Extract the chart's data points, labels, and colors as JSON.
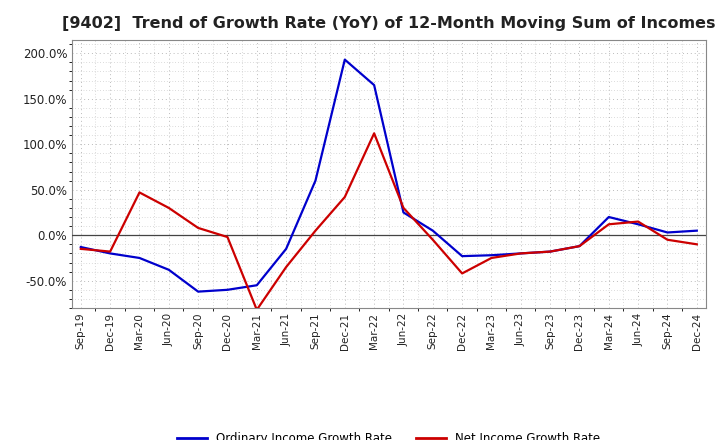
{
  "title": "[9402]  Trend of Growth Rate (YoY) of 12-Month Moving Sum of Incomes",
  "title_fontsize": 11.5,
  "title_color": "#222222",
  "xlabel": "",
  "ylabel": "",
  "ylim": [
    -80,
    215
  ],
  "yticks": [
    -50.0,
    0.0,
    50.0,
    100.0,
    150.0,
    200.0
  ],
  "background_color": "#ffffff",
  "grid_color": "#bbbbbb",
  "x_labels": [
    "Sep-19",
    "Dec-19",
    "Mar-20",
    "Jun-20",
    "Sep-20",
    "Dec-20",
    "Mar-21",
    "Jun-21",
    "Sep-21",
    "Dec-21",
    "Mar-22",
    "Jun-22",
    "Sep-22",
    "Dec-22",
    "Mar-23",
    "Jun-23",
    "Sep-23",
    "Dec-23",
    "Mar-24",
    "Jun-24",
    "Sep-24",
    "Dec-24"
  ],
  "ordinary_income": [
    -13,
    -20,
    -25,
    -38,
    -62,
    -60,
    -55,
    -15,
    60,
    193,
    165,
    25,
    5,
    -23,
    -22,
    -20,
    -18,
    -12,
    20,
    12,
    3,
    5
  ],
  "net_income": [
    -15,
    -18,
    47,
    30,
    8,
    -2,
    -82,
    -35,
    5,
    42,
    112,
    30,
    -5,
    -42,
    -25,
    -20,
    -18,
    -12,
    12,
    15,
    -5,
    -10
  ],
  "ordinary_color": "#0000cc",
  "net_color": "#cc0000",
  "line_width": 1.6,
  "legend_ordinary": "Ordinary Income Growth Rate",
  "legend_net": "Net Income Growth Rate"
}
